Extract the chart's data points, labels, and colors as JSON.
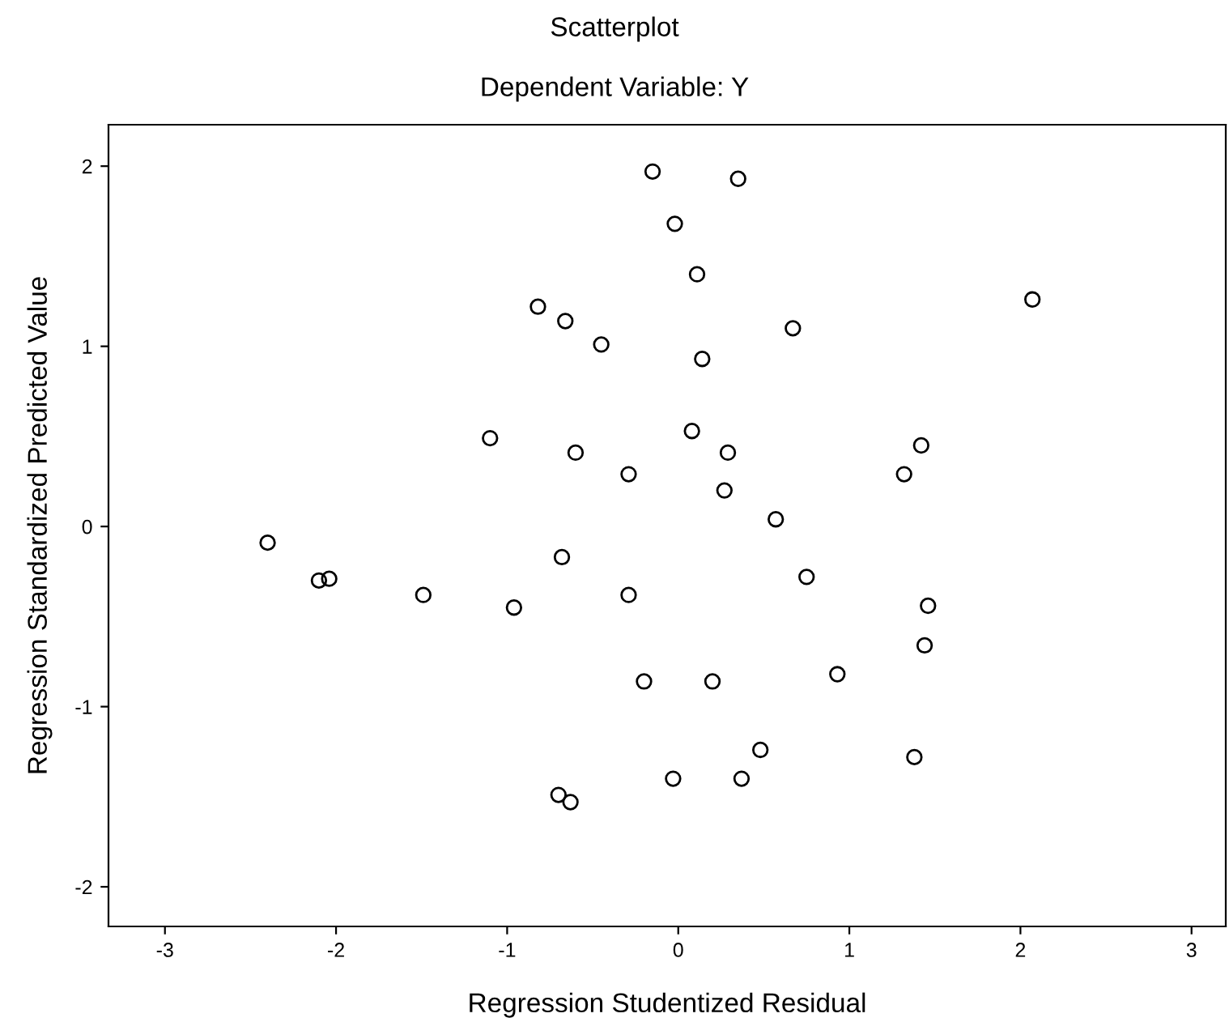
{
  "chart_data": {
    "type": "scatter",
    "title": "Scatterplot",
    "subtitle": "Dependent Variable: Y",
    "xlabel": "Regression Studentized Residual",
    "ylabel": "Regression Standardized Predicted Value",
    "xlim": [
      -3.33,
      3.2
    ],
    "ylim": [
      -2.22,
      2.23
    ],
    "xticks": [
      {
        "value": -3,
        "label": "-3"
      },
      {
        "value": -2,
        "label": "-2"
      },
      {
        "value": -1,
        "label": "-1"
      },
      0,
      1,
      2,
      3
    ],
    "yticks": [
      {
        "value": -2,
        "label": "-2"
      },
      {
        "value": -1,
        "label": "-1"
      },
      0,
      1,
      2
    ],
    "grid": false,
    "marker": "circle",
    "series": [
      {
        "color": "#000000",
        "x": [
          -0.15,
          0.35,
          -0.02,
          0.11,
          -0.82,
          -0.66,
          -0.45,
          0.14,
          -1.1,
          -0.6,
          -0.29,
          0.08,
          0.29,
          0.27,
          -2.4,
          -0.68,
          0.67,
          2.07,
          1.42,
          1.32,
          0.57,
          0.75,
          -2.1,
          -2.04,
          -1.49,
          -0.96,
          -0.29,
          -0.2,
          0.2,
          -0.03,
          0.37,
          -0.7,
          -0.63,
          0.48,
          0.93,
          1.38,
          1.46,
          1.44
        ],
        "values": [
          1.97,
          1.93,
          1.68,
          1.4,
          1.22,
          1.14,
          1.01,
          0.93,
          0.49,
          0.41,
          0.29,
          0.53,
          0.41,
          0.2,
          -0.09,
          -0.17,
          1.1,
          1.26,
          0.45,
          0.29,
          0.04,
          -0.28,
          -0.3,
          -0.29,
          -0.38,
          -0.45,
          -0.38,
          -0.86,
          -0.86,
          -1.4,
          -1.4,
          -1.49,
          -1.53,
          -1.24,
          -0.82,
          -1.28,
          -0.44,
          -0.66
        ]
      }
    ]
  }
}
